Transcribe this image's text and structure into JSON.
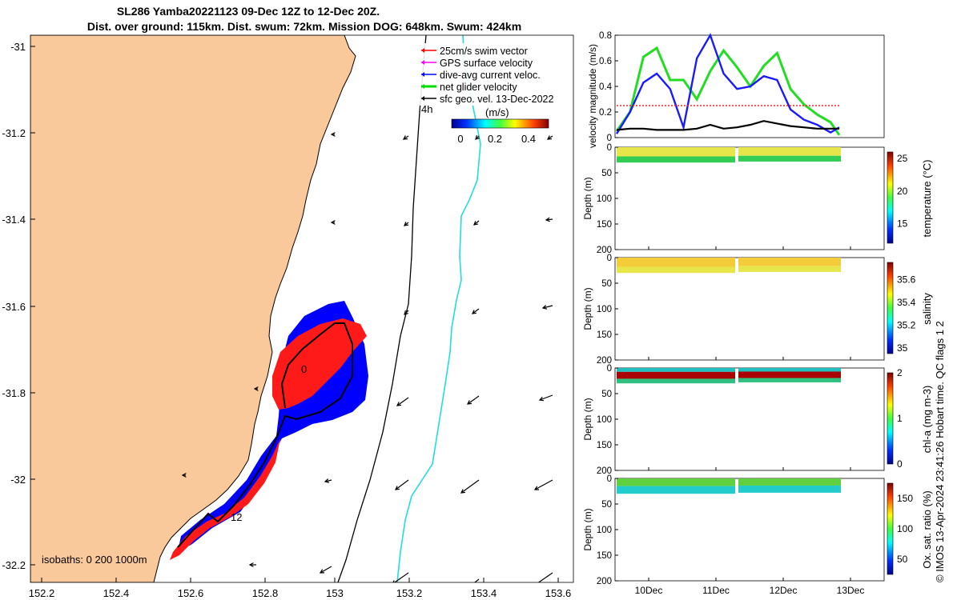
{
  "header": {
    "title_line1": "SL286 Yamba20221123 09-Dec 12Z to 12-Dec 20Z.",
    "title_line2": "Dist. over ground: 115km. Dist. swum: 72km. Mission DOG: 648km. Swum: 424km"
  },
  "credit": "© IMOS 13-Apr-2024 23:41:26 Hobart time. QC flags 1  2",
  "map": {
    "lon_ticks": [
      "152.2",
      "152.4",
      "152.6",
      "152.8",
      "153",
      "153.2",
      "153.4",
      "153.6"
    ],
    "lat_ticks": [
      "-31",
      "-31.2",
      "-31.4",
      "-31.6",
      "-31.8",
      "-32",
      "-32.2"
    ],
    "legend": [
      {
        "label": "25cm/s swim vector",
        "color": "#ff0000"
      },
      {
        "label": "GPS surface velocity",
        "color": "#ff00ff"
      },
      {
        "label": "dive-avg current veloc.",
        "color": "#0000ff"
      },
      {
        "label": "net glider velocity",
        "color": "#00dd00"
      },
      {
        "label": "sfc geo. vel. 13-Dec-2022",
        "color": "#000000"
      }
    ],
    "colorbar_label": "(m/s)",
    "colorbar_ticks": [
      "0",
      "0.2",
      "0.4"
    ],
    "hour_label": "4h",
    "day_label_start": "0",
    "day_label_end": "12",
    "isobaths_label": "isobaths: 0  200  1000m",
    "colors": {
      "land": "#f9c89b",
      "track_blue": "#0000ff",
      "swim_red": "#ff0000",
      "current": "#00dddd"
    }
  },
  "chart_data": [
    {
      "type": "line",
      "ylabel": "velocity magnitude (m/s)",
      "ylim": [
        0,
        0.8
      ],
      "yticks": [
        "0",
        "0.2",
        "0.4",
        "0.6",
        "0.8"
      ],
      "x": [
        0,
        0.2,
        0.4,
        0.6,
        0.8,
        1.0,
        1.2,
        1.4,
        1.6,
        1.8,
        2.0,
        2.2,
        2.4,
        2.6,
        2.8,
        3.0,
        3.2,
        3.33
      ],
      "series": [
        {
          "name": "net glider velocity",
          "color": "#22dd22",
          "values": [
            0.05,
            0.2,
            0.63,
            0.7,
            0.45,
            0.45,
            0.3,
            0.52,
            0.68,
            0.55,
            0.4,
            0.56,
            0.66,
            0.38,
            0.26,
            0.18,
            0.12,
            0.02
          ]
        },
        {
          "name": "dive-avg current veloc.",
          "color": "#1a1aff",
          "values": [
            0.03,
            0.2,
            0.43,
            0.5,
            0.38,
            0.08,
            0.62,
            0.8,
            0.5,
            0.38,
            0.4,
            0.48,
            0.45,
            0.22,
            0.14,
            0.1,
            0.04,
            0.08
          ]
        },
        {
          "name": "25cm/s swim vector",
          "color": "#ff2222",
          "values": [
            0.25,
            0.25,
            0.25,
            0.25,
            0.25,
            0.25,
            0.25,
            0.25,
            0.25,
            0.25,
            0.25,
            0.25,
            0.25,
            0.25,
            0.25,
            0.25,
            0.25,
            0.25
          ]
        },
        {
          "name": "sfc geo. vel. 13-Dec-2022",
          "color": "#000000",
          "values": [
            0.06,
            0.07,
            0.07,
            0.06,
            0.06,
            0.06,
            0.07,
            0.1,
            0.07,
            0.08,
            0.1,
            0.13,
            0.11,
            0.09,
            0.08,
            0.07,
            0.07,
            0.07
          ]
        }
      ]
    },
    {
      "type": "heatmap",
      "ylabel": "Depth (m)",
      "yticks": [
        "0",
        "50",
        "100",
        "150",
        "200"
      ],
      "xticks": [
        "10Dec",
        "11Dec",
        "12Dec",
        "13Dec"
      ],
      "panels": [
        {
          "label": "temperature (°C)",
          "ticks": [
            "15",
            "20",
            "25"
          ],
          "range": [
            12,
            26
          ]
        },
        {
          "label": "salinity",
          "ticks": [
            "35",
            "35.2",
            "35.4",
            "35.6"
          ],
          "range": [
            34.95,
            35.75
          ]
        },
        {
          "label": "chl-a (mg m-3)",
          "ticks": [
            "0",
            "1",
            "2"
          ],
          "range": [
            0,
            2
          ]
        },
        {
          "label": "Ox. sat. ratio (%)",
          "ticks": [
            "50",
            "100",
            "150"
          ],
          "range": [
            25,
            175
          ]
        }
      ]
    }
  ]
}
